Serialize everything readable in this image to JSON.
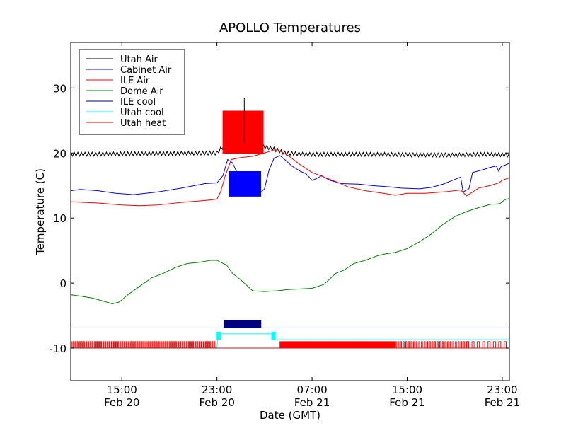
{
  "chart_data": {
    "type": "line",
    "title": "APOLLO Temperatures",
    "xlabel": "Date (GMT)",
    "ylabel": "Temperature (C)",
    "xlim": [
      10.7,
      47.6
    ],
    "ylim": [
      -15,
      37
    ],
    "yticks": [
      -10,
      0,
      10,
      20,
      30
    ],
    "ytick_labels": [
      "-10",
      "0",
      "10",
      "20",
      "30"
    ],
    "xticks": [
      {
        "value": 15,
        "time": "15:00",
        "date": "Feb 20"
      },
      {
        "value": 23,
        "time": "23:00",
        "date": "Feb 20"
      },
      {
        "value": 31,
        "time": "07:00",
        "date": "Feb 21"
      },
      {
        "value": 39,
        "time": "15:00",
        "date": "Feb 21"
      },
      {
        "value": 47,
        "time": "23:00",
        "date": "Feb 21"
      }
    ],
    "x_units": "hours since Feb 20 00:00 GMT",
    "legend_position": "top-left",
    "series": [
      {
        "name": "Utah Air",
        "color": "#000000",
        "style": "oscillating",
        "amp": 0.3,
        "period": 0.3,
        "points": [
          [
            10.7,
            19.8
          ],
          [
            23.0,
            20.0
          ],
          [
            23.5,
            21.0
          ],
          [
            24.5,
            23.0
          ],
          [
            25.5,
            21.5
          ],
          [
            26.5,
            21.2
          ],
          [
            27.8,
            20.6
          ],
          [
            28.7,
            20.0
          ],
          [
            30.5,
            19.8
          ],
          [
            34.0,
            19.8
          ],
          [
            37.0,
            19.8
          ],
          [
            40.0,
            19.7
          ],
          [
            43.0,
            19.7
          ],
          [
            45.5,
            19.8
          ],
          [
            47.6,
            19.7
          ]
        ]
      },
      {
        "name": "Cabinet Air",
        "color": "#0000ff",
        "style": "line",
        "points": [
          [
            10.7,
            14.2
          ],
          [
            11.5,
            14.4
          ],
          [
            13.0,
            14.2
          ],
          [
            14.5,
            13.8
          ],
          [
            16.0,
            13.6
          ],
          [
            18.0,
            14.0
          ],
          [
            20.0,
            14.6
          ],
          [
            22.0,
            15.3
          ],
          [
            23.0,
            15.4
          ],
          [
            23.5,
            16.5
          ],
          [
            23.9,
            19.0
          ],
          [
            24.3,
            18.5
          ],
          [
            25.2,
            15.0
          ],
          [
            26.0,
            14.0
          ],
          [
            26.6,
            13.8
          ],
          [
            27.0,
            14.5
          ],
          [
            27.4,
            17.5
          ],
          [
            27.8,
            19.2
          ],
          [
            28.3,
            19.6
          ],
          [
            28.7,
            19.0
          ],
          [
            29.3,
            18.0
          ],
          [
            30.0,
            17.2
          ],
          [
            30.5,
            16.8
          ],
          [
            31.0,
            15.8
          ],
          [
            31.3,
            16.0
          ],
          [
            31.8,
            16.5
          ],
          [
            32.5,
            15.8
          ],
          [
            33.5,
            15.3
          ],
          [
            35.0,
            15.2
          ],
          [
            36.0,
            15.0
          ],
          [
            37.5,
            14.8
          ],
          [
            38.5,
            14.6
          ],
          [
            40.0,
            14.5
          ],
          [
            41.0,
            14.7
          ],
          [
            42.0,
            15.2
          ],
          [
            43.5,
            16.3
          ],
          [
            43.7,
            14.0
          ],
          [
            44.2,
            14.5
          ],
          [
            44.5,
            17.0
          ],
          [
            45.5,
            17.5
          ],
          [
            46.0,
            17.8
          ],
          [
            46.5,
            18.0
          ],
          [
            46.7,
            17.2
          ],
          [
            46.9,
            17.9
          ],
          [
            47.6,
            18.4
          ]
        ]
      },
      {
        "name": "ILE Air",
        "color": "#ff0000",
        "style": "line",
        "points": [
          [
            10.7,
            12.5
          ],
          [
            13.0,
            12.3
          ],
          [
            15.0,
            12.0
          ],
          [
            16.5,
            11.9
          ],
          [
            18.0,
            12.0
          ],
          [
            20.0,
            12.4
          ],
          [
            22.0,
            12.7
          ],
          [
            23.0,
            12.9
          ],
          [
            23.3,
            14.0
          ],
          [
            23.7,
            16.5
          ],
          [
            24.2,
            19.0
          ],
          [
            25.0,
            19.3
          ],
          [
            26.0,
            19.5
          ],
          [
            27.0,
            20.0
          ],
          [
            28.0,
            20.6
          ],
          [
            29.0,
            19.6
          ],
          [
            30.0,
            18.2
          ],
          [
            31.0,
            17.0
          ],
          [
            32.0,
            16.3
          ],
          [
            33.0,
            15.6
          ],
          [
            34.0,
            14.8
          ],
          [
            35.5,
            14.2
          ],
          [
            37.0,
            13.8
          ],
          [
            38.0,
            13.5
          ],
          [
            39.0,
            13.8
          ],
          [
            40.5,
            13.8
          ],
          [
            42.0,
            14.0
          ],
          [
            43.5,
            14.3
          ],
          [
            44.0,
            13.4
          ],
          [
            45.0,
            14.6
          ],
          [
            46.0,
            15.0
          ],
          [
            46.7,
            15.4
          ],
          [
            47.0,
            15.8
          ],
          [
            47.6,
            16.2
          ]
        ]
      },
      {
        "name": "Dome Air",
        "color": "#008000",
        "style": "line",
        "points": [
          [
            10.7,
            -1.8
          ],
          [
            11.5,
            -2.0
          ],
          [
            12.5,
            -2.3
          ],
          [
            13.5,
            -2.8
          ],
          [
            14.2,
            -3.2
          ],
          [
            14.8,
            -2.9
          ],
          [
            15.5,
            -1.8
          ],
          [
            16.5,
            -0.5
          ],
          [
            17.5,
            0.8
          ],
          [
            18.5,
            1.5
          ],
          [
            19.5,
            2.4
          ],
          [
            20.5,
            3.0
          ],
          [
            21.5,
            3.2
          ],
          [
            22.5,
            3.5
          ],
          [
            23.0,
            3.5
          ],
          [
            23.3,
            3.2
          ],
          [
            23.8,
            2.8
          ],
          [
            24.3,
            1.5
          ],
          [
            25.0,
            0.5
          ],
          [
            26.0,
            -1.2
          ],
          [
            27.0,
            -1.3
          ],
          [
            28.0,
            -1.2
          ],
          [
            29.0,
            -1.0
          ],
          [
            30.0,
            -0.9
          ],
          [
            31.0,
            -0.8
          ],
          [
            32.0,
            -0.2
          ],
          [
            33.0,
            1.5
          ],
          [
            33.7,
            2.0
          ],
          [
            34.5,
            3.0
          ],
          [
            35.5,
            3.5
          ],
          [
            36.5,
            4.2
          ],
          [
            37.2,
            4.5
          ],
          [
            38.0,
            4.7
          ],
          [
            39.0,
            5.3
          ],
          [
            40.0,
            6.3
          ],
          [
            41.0,
            7.5
          ],
          [
            42.0,
            9.0
          ],
          [
            43.0,
            10.2
          ],
          [
            44.0,
            11.0
          ],
          [
            45.0,
            11.6
          ],
          [
            46.0,
            12.1
          ],
          [
            46.8,
            12.2
          ],
          [
            47.2,
            12.8
          ],
          [
            47.6,
            13.0
          ]
        ]
      },
      {
        "name": "ILE cool",
        "color": "#000080",
        "style": "line",
        "points": [
          [
            10.7,
            -6.9
          ],
          [
            47.6,
            -6.9
          ]
        ]
      },
      {
        "name": "Utah cool",
        "color": "#00ffff",
        "style": "line",
        "points": [
          [
            10.7,
            -9.9
          ],
          [
            23.0,
            -9.9
          ],
          [
            23.1,
            -7.8
          ],
          [
            27.6,
            -7.8
          ],
          [
            27.8,
            -8.7
          ],
          [
            47.6,
            -8.7
          ]
        ]
      },
      {
        "name": "Utah heat",
        "color": "#ff0000",
        "style": "line",
        "points": [
          [
            10.7,
            -10.0
          ],
          [
            47.6,
            -10.0
          ]
        ]
      }
    ],
    "bursts": [
      {
        "series": "ILE Air",
        "color": "#ff0000",
        "x": [
          23.5,
          26.9
        ],
        "low": 19.9,
        "high": 26.5
      },
      {
        "series": "Cabinet Air",
        "color": "#0000ff",
        "x": [
          24.0,
          26.7
        ],
        "low": 13.3,
        "high": 17.2
      },
      {
        "series": "ILE cool",
        "color": "#000080",
        "x": [
          23.6,
          26.7
        ],
        "low": -6.9,
        "high": -5.7
      },
      {
        "series": "Utah cool",
        "color": "#00ffff",
        "x": [
          23.0,
          23.3
        ],
        "low": -8.7,
        "high": -7.5
      },
      {
        "series": "Utah cool",
        "color": "#00ffff",
        "x": [
          27.6,
          27.9
        ],
        "low": -8.7,
        "high": -7.5
      }
    ],
    "pulses": [
      {
        "series": "Utah heat",
        "color": "#ff0000",
        "x": [
          10.7,
          22.8
        ],
        "spacing": 0.18,
        "low": -10.0,
        "high": -9.0
      },
      {
        "series": "Utah heat",
        "color": "#ff0000",
        "x": [
          28.3,
          38.0
        ],
        "spacing": 0.08,
        "low": -10.0,
        "high": -9.0
      },
      {
        "series": "Utah heat",
        "color": "#ff0000",
        "x": [
          38.0,
          44.0
        ],
        "spacing": 0.22,
        "low": -10.0,
        "high": -9.0
      },
      {
        "series": "Utah heat",
        "color": "#ff0000",
        "x": [
          44.0,
          47.6
        ],
        "spacing": 0.45,
        "low": -10.0,
        "high": -9.0
      }
    ],
    "spikes": [
      {
        "series": "Utah Air",
        "color": "#000000",
        "x": 25.3,
        "low": 21.5,
        "high": 28.5
      }
    ]
  }
}
